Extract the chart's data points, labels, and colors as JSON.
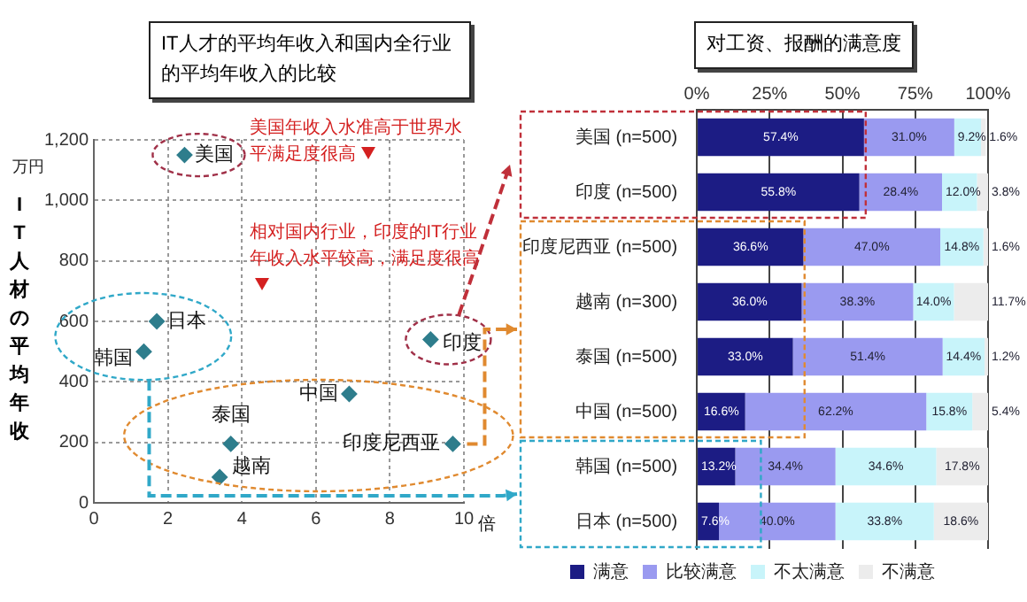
{
  "chart_data": [
    {
      "type": "scatter",
      "title": "IT人才的平均年收入和国内全行业的平均年收入的比较",
      "xlabel": "倍",
      "ylabel": "IT人材の平均年收",
      "x": [
        2.45,
        1.7,
        1.35,
        9.1,
        6.9,
        3.7,
        3.4,
        9.7
      ],
      "values": [
        1150,
        600,
        500,
        540,
        360,
        195,
        85,
        195
      ],
      "color": "#2e7d8c",
      "marker": "diamond",
      "xlim": [
        0,
        10
      ],
      "xticks": [
        0,
        2,
        4,
        6,
        8,
        10
      ],
      "ylim": [
        0,
        1200
      ],
      "yticks": [
        0,
        200,
        400,
        600,
        800,
        {
          "value": 1000,
          "label": "1,000"
        },
        {
          "value": 1200,
          "label": "1,200"
        }
      ],
      "grid": true,
      "annotations": [
        "万円",
        "美国年收入水准高于世界水平满足度很高",
        "相对国内行业，印度的IT行业年收入水平较高，满足度很高",
        {
          "text": "美国",
          "x": 2.45,
          "y": 1150
        },
        {
          "text": "日本",
          "x": 1.7,
          "y": 600
        },
        {
          "text": "韩国",
          "x": 1.35,
          "y": 500
        },
        {
          "text": "印度",
          "x": 9.1,
          "y": 540
        },
        {
          "text": "中国",
          "x": 6.9,
          "y": 360
        },
        {
          "text": "泰国",
          "x": 3.7,
          "y": 195
        },
        {
          "text": "越南",
          "x": 3.4,
          "y": 85
        },
        {
          "text": "印度尼西亚",
          "x": 9.7,
          "y": 195
        }
      ]
    },
    {
      "type": "bar",
      "orientation": "horizontal",
      "stacked": true,
      "title": "对工资、报酬的满意度",
      "categories": [
        "美国 (n=500)",
        "印度 (n=500)",
        "印度尼西亚 (n=500)",
        "越南 (n=300)",
        "泰国 (n=500)",
        "中国 (n=500)",
        "韩国 (n=500)",
        "日本 (n=500)"
      ],
      "series": [
        {
          "name": "满意",
          "color": "#1c1c84",
          "values": [
            57.4,
            55.8,
            36.6,
            36.0,
            33.0,
            16.6,
            13.2,
            7.6
          ],
          "value_labels": [
            "57.4%",
            "55.8%",
            "36.6%",
            "36.0%",
            "33.0%",
            "16.6%",
            "13.2%",
            "7.6%"
          ]
        },
        {
          "name": "比较满意",
          "color": "#9a9af0",
          "values": [
            31.0,
            28.4,
            47.0,
            38.3,
            51.4,
            62.2,
            34.4,
            40.0
          ],
          "value_labels": [
            "31.0%",
            "28.4%",
            "47.0%",
            "38.3%",
            "51.4%",
            "62.2%",
            "34.4%",
            "40.0%"
          ]
        },
        {
          "name": "不太满意",
          "color": "#c8f4fa",
          "values": [
            9.2,
            12.0,
            14.8,
            14.0,
            14.4,
            15.8,
            34.6,
            33.8
          ],
          "value_labels": [
            "9.2%",
            "12.0%",
            "14.8%",
            "14.0%",
            "14.4%",
            "15.8%",
            "34.6%",
            "33.8%"
          ]
        },
        {
          "name": "不满意",
          "color": "#ececec",
          "values": [
            1.6,
            3.8,
            1.6,
            11.7,
            1.2,
            5.4,
            17.8,
            18.6
          ],
          "value_labels": [
            "1.6%",
            "3.8%",
            "1.6%",
            "11.7%",
            "1.2%",
            "5.4%",
            "17.8%",
            "18.6%"
          ]
        }
      ],
      "xlim": [
        0,
        100
      ],
      "xticks": [
        {
          "value": 0,
          "label": "0%"
        },
        {
          "value": 25,
          "label": "25%"
        },
        {
          "value": 50,
          "label": "50%"
        },
        {
          "value": 75,
          "label": "75%"
        },
        {
          "value": 100,
          "label": "100%"
        }
      ],
      "grid": "x",
      "legend": "bottom"
    }
  ]
}
